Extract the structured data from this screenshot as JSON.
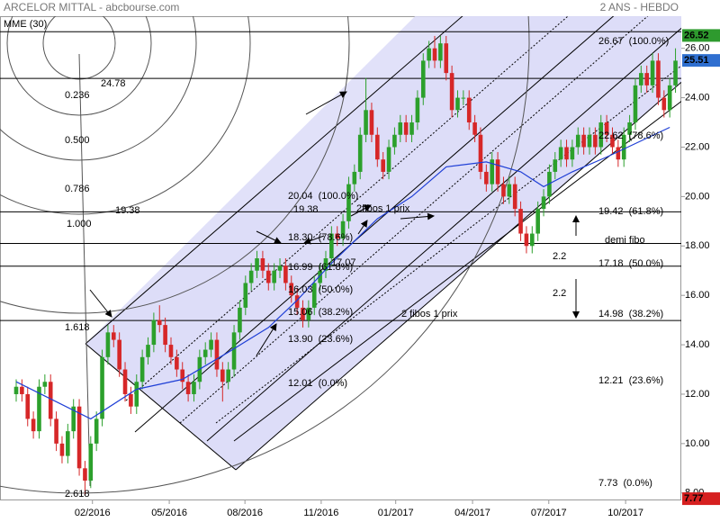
{
  "chart_data": {
    "type": "candlestick",
    "title": "ARCELOR MITTAL - abcbourse.com",
    "subtitle": "2 ANS - HEBDO",
    "indicator_name": "MME (30)",
    "indicator_color": "#1f3fd6",
    "up_color": "#2ca02c",
    "down_color": "#d62728",
    "ylim": [
      7.7,
      27.3
    ],
    "yticks": [
      {
        "value": 8,
        "label": "8.00"
      },
      {
        "value": 10,
        "label": "10.00"
      },
      {
        "value": 12,
        "label": "12.00"
      },
      {
        "value": 14,
        "label": "14.00"
      },
      {
        "value": 16,
        "label": "16.00"
      },
      {
        "value": 18,
        "label": "18.00"
      },
      {
        "value": 20,
        "label": "20.00"
      },
      {
        "value": 22,
        "label": "22.00"
      },
      {
        "value": 24,
        "label": "24.00"
      },
      {
        "value": 26,
        "label": "26.00"
      }
    ],
    "xticks": [
      {
        "value": 13.3,
        "label": "02/2016"
      },
      {
        "value": 26.7,
        "label": "05/2016"
      },
      {
        "value": 39.9,
        "label": "08/2016"
      },
      {
        "value": 53.2,
        "label": "11/2016"
      },
      {
        "value": 66.2,
        "label": "01/2017"
      },
      {
        "value": 79.6,
        "label": "04/2017"
      },
      {
        "value": 92.9,
        "label": "07/2017"
      },
      {
        "value": 106.3,
        "label": "10/2017"
      }
    ],
    "price_badges": [
      {
        "value": 26.52,
        "color": "#2e9a2e"
      },
      {
        "value": 25.51,
        "color": "#2f6fd0"
      },
      {
        "value": 7.77,
        "color": "#d62020"
      }
    ],
    "candles": [
      [
        12.0,
        12.6,
        11.7,
        12.3
      ],
      [
        12.3,
        12.6,
        11.7,
        12.0
      ],
      [
        12.0,
        12.3,
        10.7,
        11.0
      ],
      [
        11.0,
        11.3,
        10.2,
        10.5
      ],
      [
        10.5,
        12.6,
        10.2,
        12.3
      ],
      [
        12.3,
        12.8,
        12.0,
        12.5
      ],
      [
        12.5,
        12.8,
        10.7,
        11.0
      ],
      [
        11.0,
        11.3,
        9.7,
        10.0
      ],
      [
        10.0,
        10.3,
        9.2,
        9.5
      ],
      [
        9.5,
        10.8,
        9.2,
        10.5
      ],
      [
        10.5,
        11.8,
        10.2,
        11.5
      ],
      [
        11.5,
        11.8,
        8.7,
        9.0
      ],
      [
        9.0,
        9.3,
        7.9,
        8.5
      ],
      [
        8.5,
        10.3,
        8.2,
        10.0
      ],
      [
        10.0,
        11.3,
        9.7,
        11.0
      ],
      [
        11.0,
        13.8,
        10.7,
        13.5
      ],
      [
        13.5,
        14.8,
        13.2,
        14.5
      ],
      [
        14.5,
        14.8,
        13.9,
        14.2
      ],
      [
        14.2,
        14.5,
        12.7,
        13.0
      ],
      [
        13.0,
        13.3,
        11.7,
        12.0
      ],
      [
        12.0,
        12.3,
        11.2,
        11.5
      ],
      [
        11.5,
        12.8,
        11.2,
        12.5
      ],
      [
        12.5,
        13.8,
        12.2,
        13.5
      ],
      [
        13.5,
        14.3,
        13.2,
        14.0
      ],
      [
        14.0,
        15.3,
        13.7,
        15.0
      ],
      [
        15.0,
        15.6,
        14.5,
        14.8
      ],
      [
        14.8,
        15.1,
        13.7,
        14.0
      ],
      [
        14.0,
        14.3,
        13.2,
        13.5
      ],
      [
        13.5,
        13.8,
        12.7,
        13.0
      ],
      [
        13.0,
        13.3,
        12.2,
        12.5
      ],
      [
        12.5,
        12.8,
        11.7,
        12.0
      ],
      [
        12.0,
        12.8,
        11.7,
        12.5
      ],
      [
        12.5,
        13.8,
        12.2,
        13.5
      ],
      [
        13.5,
        14.1,
        13.2,
        13.8
      ],
      [
        13.8,
        14.5,
        13.5,
        14.2
      ],
      [
        14.2,
        14.5,
        12.7,
        13.0
      ],
      [
        13.0,
        13.3,
        11.7,
        12.5
      ],
      [
        12.5,
        13.3,
        12.2,
        13.0
      ],
      [
        13.0,
        14.8,
        12.7,
        14.5
      ],
      [
        14.5,
        15.8,
        14.2,
        15.5
      ],
      [
        15.5,
        16.8,
        15.2,
        16.5
      ],
      [
        16.5,
        17.3,
        16.2,
        17.0
      ],
      [
        17.0,
        17.8,
        16.7,
        17.5
      ],
      [
        17.5,
        17.8,
        16.7,
        17.0
      ],
      [
        17.0,
        17.3,
        16.2,
        16.5
      ],
      [
        16.5,
        17.3,
        16.2,
        17.0
      ],
      [
        17.0,
        17.5,
        16.7,
        17.2
      ],
      [
        17.2,
        17.5,
        16.2,
        16.5
      ],
      [
        16.5,
        16.8,
        15.7,
        16.0
      ],
      [
        16.0,
        16.3,
        15.2,
        15.5
      ],
      [
        15.5,
        15.8,
        14.7,
        15.0
      ],
      [
        15.0,
        15.8,
        14.7,
        15.5
      ],
      [
        15.5,
        16.8,
        15.2,
        16.5
      ],
      [
        16.5,
        17.3,
        16.2,
        17.0
      ],
      [
        17.0,
        17.8,
        16.7,
        17.5
      ],
      [
        17.5,
        18.8,
        17.2,
        18.5
      ],
      [
        18.5,
        18.8,
        18.0,
        18.3
      ],
      [
        18.3,
        19.3,
        18.0,
        19.0
      ],
      [
        19.0,
        20.8,
        18.7,
        20.5
      ],
      [
        20.5,
        21.3,
        20.2,
        21.0
      ],
      [
        21.0,
        22.8,
        20.7,
        22.5
      ],
      [
        22.5,
        24.8,
        22.2,
        23.5
      ],
      [
        23.5,
        23.8,
        22.2,
        22.5
      ],
      [
        22.5,
        22.8,
        21.2,
        21.5
      ],
      [
        21.5,
        21.8,
        20.7,
        21.0
      ],
      [
        21.0,
        22.3,
        20.7,
        22.0
      ],
      [
        22.0,
        22.8,
        21.7,
        22.5
      ],
      [
        22.5,
        23.3,
        22.2,
        23.0
      ],
      [
        23.0,
        23.3,
        22.2,
        22.5
      ],
      [
        22.5,
        23.3,
        22.2,
        23.0
      ],
      [
        23.0,
        24.3,
        22.7,
        24.0
      ],
      [
        24.0,
        25.8,
        23.7,
        25.5
      ],
      [
        25.5,
        26.3,
        25.2,
        26.0
      ],
      [
        26.0,
        26.5,
        25.2,
        25.5
      ],
      [
        25.5,
        26.5,
        25.2,
        26.2
      ],
      [
        26.2,
        26.5,
        24.7,
        25.0
      ],
      [
        25.0,
        25.3,
        23.2,
        23.5
      ],
      [
        23.5,
        24.3,
        23.2,
        24.0
      ],
      [
        24.0,
        24.3,
        23.7,
        24.0
      ],
      [
        24.0,
        24.3,
        22.7,
        23.0
      ],
      [
        23.0,
        23.3,
        22.2,
        22.5
      ],
      [
        22.5,
        22.8,
        20.7,
        21.0
      ],
      [
        21.0,
        21.3,
        20.2,
        20.5
      ],
      [
        20.5,
        21.8,
        20.2,
        21.5
      ],
      [
        21.5,
        21.8,
        20.2,
        20.5
      ],
      [
        20.5,
        20.8,
        19.7,
        20.0
      ],
      [
        20.0,
        20.8,
        19.7,
        20.5
      ],
      [
        20.5,
        20.8,
        19.2,
        19.5
      ],
      [
        19.5,
        19.8,
        18.2,
        18.5
      ],
      [
        18.5,
        18.8,
        17.7,
        18.0
      ],
      [
        18.0,
        18.8,
        17.7,
        18.5
      ],
      [
        18.5,
        19.8,
        18.2,
        19.5
      ],
      [
        19.5,
        20.3,
        19.2,
        20.0
      ],
      [
        20.0,
        21.3,
        19.7,
        21.0
      ],
      [
        21.0,
        21.8,
        20.7,
        21.5
      ],
      [
        21.5,
        22.3,
        21.2,
        22.0
      ],
      [
        22.0,
        22.3,
        21.2,
        21.5
      ],
      [
        21.5,
        22.3,
        21.2,
        22.0
      ],
      [
        22.0,
        22.8,
        21.7,
        22.5
      ],
      [
        22.5,
        22.8,
        21.7,
        22.0
      ],
      [
        22.0,
        22.8,
        21.7,
        22.5
      ],
      [
        22.5,
        22.8,
        21.7,
        22.0
      ],
      [
        22.0,
        23.3,
        21.7,
        23.0
      ],
      [
        23.0,
        23.3,
        22.2,
        22.5
      ],
      [
        22.5,
        22.8,
        21.7,
        22.0
      ],
      [
        22.0,
        22.3,
        21.2,
        21.5
      ],
      [
        21.5,
        22.8,
        21.2,
        22.5
      ],
      [
        22.5,
        23.3,
        22.2,
        23.0
      ],
      [
        23.0,
        24.8,
        22.7,
        24.5
      ],
      [
        24.5,
        25.3,
        24.2,
        25.0
      ],
      [
        25.0,
        25.3,
        24.2,
        24.5
      ],
      [
        24.5,
        25.8,
        24.2,
        25.5
      ],
      [
        25.5,
        25.8,
        23.7,
        24.0
      ],
      [
        24.0,
        24.3,
        23.2,
        23.5
      ],
      [
        23.5,
        24.8,
        23.2,
        24.5
      ],
      [
        24.5,
        26.0,
        24.2,
        25.5
      ]
    ],
    "indicator": {
      "x": [
        0,
        13,
        21,
        29,
        37,
        44,
        49,
        55,
        63,
        69,
        75,
        82,
        88,
        92,
        97,
        103,
        114
      ],
      "values": [
        12.5,
        11.0,
        12.2,
        12.6,
        13.7,
        14.7,
        15.8,
        17.3,
        19.1,
        20.0,
        21.2,
        21.4,
        21.0,
        20.4,
        21.0,
        21.6,
        22.8
      ]
    },
    "hlines": [
      26.67,
      24.78,
      19.38,
      18.1,
      17.18,
      14.98
    ],
    "annotations": [
      "26.67  (100.0%)",
      "22.62  (78.6%)",
      "19.42  (61.8%)",
      "17.18  (50.0%)",
      "14.98  (38.2%)",
      "12.21  (23.6%)",
      "7.73  (0.0%)",
      "0.236",
      "24.78",
      "0.500",
      "0.786",
      "1.000",
      "19.38",
      "1.618",
      "2.618",
      "20.04  (100.0%)",
      "19.38",
      "18.30  (78.6%)",
      "16.99  (61.8%)",
      "17.07",
      "16.03  (50.0%)",
      "15.06  (38.2%)",
      "13.90  (23.6%)",
      "12.01  (0.0%)",
      "2fibos 1 prix",
      "2 fibos 1 prix",
      "demi fibo",
      "2.2",
      "2.2"
    ]
  }
}
